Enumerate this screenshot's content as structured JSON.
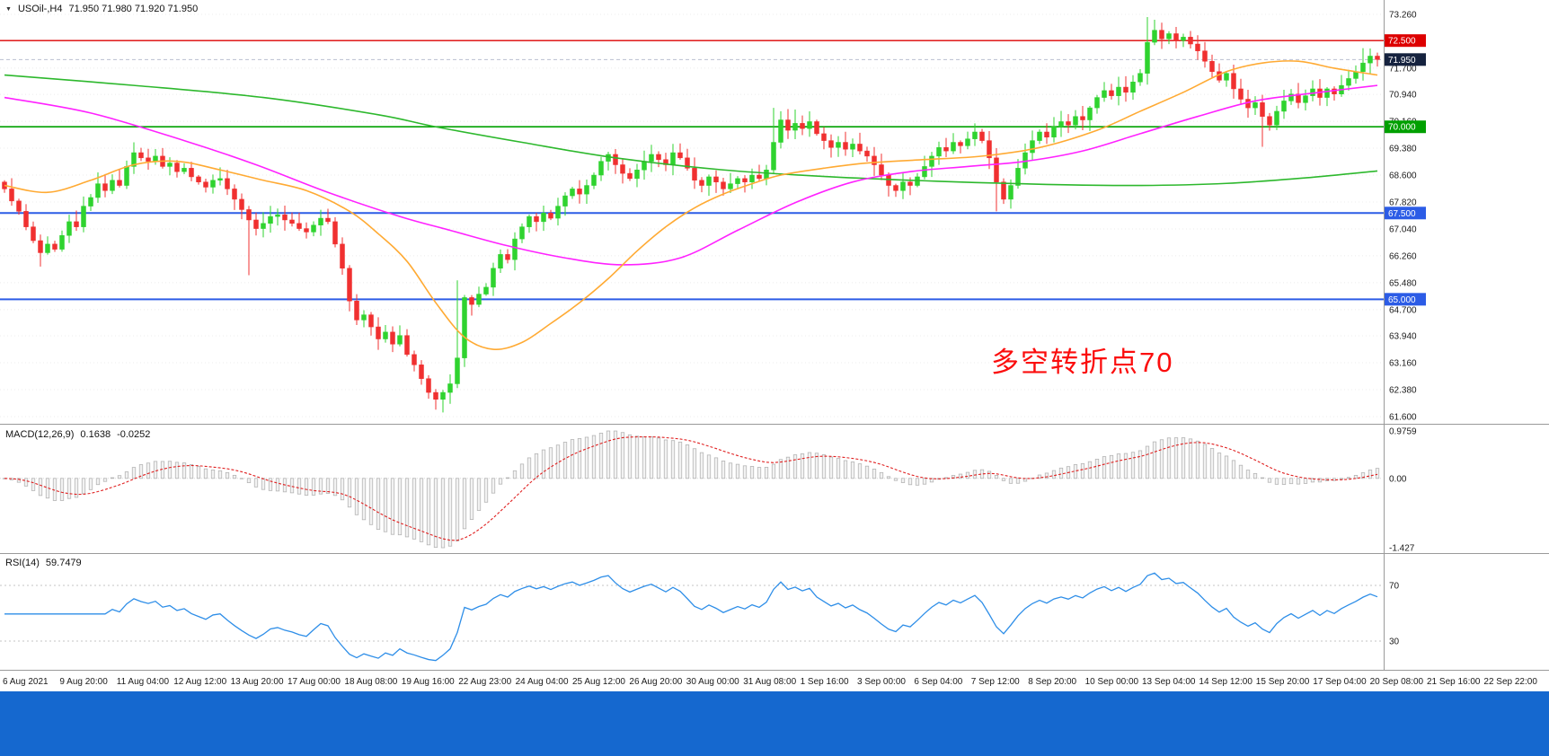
{
  "ui": {
    "footer_color": "#1568cf"
  },
  "chart_data": {
    "type": "candlestick",
    "title": {
      "symbol": "USOil-,H4",
      "values": "71.950 71.980 71.920 71.950"
    },
    "colors": {
      "up": "#2fd32f",
      "down": "#f03030",
      "grid": "#ececec",
      "separator": "#9a9a9a",
      "axis_text": "#1a1a1a"
    },
    "price_axis": {
      "labels": [
        "73.260",
        "71.700",
        "70.940",
        "70.160",
        "69.380",
        "68.600",
        "67.820",
        "67.040",
        "66.260",
        "65.480",
        "64.700",
        "63.940",
        "63.160",
        "62.380",
        "61.600"
      ],
      "badges": [
        {
          "text": "72.500",
          "price": 72.5,
          "color": "#dd0000"
        },
        {
          "text": "71.950",
          "price": 71.95,
          "color": "#16233f"
        },
        {
          "text": "70.000",
          "price": 70.0,
          "color": "#00a000"
        },
        {
          "text": "67.500",
          "price": 67.5,
          "color": "#2c5ce6"
        },
        {
          "text": "65.000",
          "price": 65.0,
          "color": "#2c5ce6"
        }
      ]
    },
    "levels": [
      {
        "price": 72.5,
        "color": "#dd0000",
        "width": 1.4
      },
      {
        "price": 70.0,
        "color": "#00a000",
        "width": 1.6
      },
      {
        "price": 67.5,
        "color": "#2c5ce6",
        "width": 2
      },
      {
        "price": 65.0,
        "color": "#2c5ce6",
        "width": 2
      }
    ],
    "current_price": 71.95,
    "candles": {
      "first_open": 68.4,
      "closes": [
        68.2,
        67.85,
        67.55,
        67.1,
        66.7,
        66.35,
        66.6,
        66.45,
        66.85,
        67.25,
        67.1,
        67.7,
        67.95,
        68.35,
        68.15,
        68.45,
        68.3,
        68.85,
        69.25,
        69.1,
        69.0,
        69.15,
        68.85,
        68.95,
        68.7,
        68.8,
        68.55,
        68.4,
        68.25,
        68.45,
        68.5,
        68.2,
        67.9,
        67.6,
        67.3,
        67.05,
        67.2,
        67.4,
        67.45,
        67.3,
        67.2,
        67.05,
        66.95,
        67.15,
        67.35,
        67.25,
        66.6,
        65.9,
        64.95,
        64.4,
        64.55,
        64.2,
        63.85,
        64.05,
        63.7,
        63.95,
        63.4,
        63.1,
        62.7,
        62.3,
        62.1,
        62.3,
        62.55,
        63.3,
        65.05,
        64.85,
        65.15,
        65.35,
        65.9,
        66.3,
        66.15,
        66.75,
        67.1,
        67.4,
        67.25,
        67.5,
        67.35,
        67.7,
        68.0,
        68.2,
        68.05,
        68.3,
        68.6,
        69.0,
        69.2,
        68.9,
        68.65,
        68.5,
        68.75,
        69.0,
        69.2,
        69.05,
        68.9,
        69.25,
        69.1,
        68.8,
        68.45,
        68.3,
        68.55,
        68.4,
        68.2,
        68.35,
        68.5,
        68.4,
        68.6,
        68.5,
        68.75,
        69.55,
        70.2,
        69.9,
        70.1,
        69.95,
        70.15,
        69.8,
        69.6,
        69.4,
        69.55,
        69.35,
        69.5,
        69.3,
        69.15,
        68.9,
        68.6,
        68.3,
        68.15,
        68.4,
        68.3,
        68.55,
        68.85,
        69.15,
        69.4,
        69.3,
        69.55,
        69.45,
        69.65,
        69.85,
        69.6,
        69.1,
        68.4,
        67.9,
        68.3,
        68.8,
        69.25,
        69.6,
        69.85,
        69.7,
        70.0,
        70.15,
        70.05,
        70.3,
        70.2,
        70.55,
        70.85,
        71.05,
        70.9,
        71.15,
        71.0,
        71.3,
        71.55,
        72.45,
        72.8,
        72.55,
        72.7,
        72.5,
        72.6,
        72.4,
        72.2,
        71.9,
        71.6,
        71.35,
        71.55,
        71.1,
        70.8,
        70.55,
        70.7,
        70.3,
        70.05,
        70.45,
        70.75,
        70.95,
        70.7,
        70.9,
        71.1,
        70.85,
        71.1,
        70.95,
        71.2,
        71.4,
        71.6,
        71.85,
        72.05,
        71.95
      ],
      "wick_overrides": {
        "5": {
          "low": 65.95
        },
        "18": {
          "high": 69.55
        },
        "34": {
          "low": 65.7
        },
        "49": {
          "high": 65.15
        },
        "60": {
          "low": 61.8
        },
        "61": {
          "low": 61.72
        },
        "63": {
          "high": 65.55
        },
        "107": {
          "high": 70.55
        },
        "110": {
          "high": 70.5
        },
        "112": {
          "high": 70.45
        },
        "135": {
          "high": 70.1
        },
        "138": {
          "low": 67.55
        },
        "159": {
          "high": 73.18
        },
        "161": {
          "high": 73.02
        },
        "175": {
          "low": 69.42
        },
        "189": {
          "high": 72.28
        }
      }
    },
    "moving_averages": [
      {
        "name": "ma-long-green",
        "color": "#2db82d",
        "points": [
          [
            0,
            71.5
          ],
          [
            18,
            71.2
          ],
          [
            36,
            70.85
          ],
          [
            52,
            70.35
          ],
          [
            60,
            70.0
          ],
          [
            72,
            69.55
          ],
          [
            85,
            69.1
          ],
          [
            100,
            68.75
          ],
          [
            115,
            68.55
          ],
          [
            130,
            68.42
          ],
          [
            145,
            68.33
          ],
          [
            158,
            68.3
          ],
          [
            170,
            68.36
          ],
          [
            181,
            68.52
          ],
          [
            191,
            68.72
          ]
        ]
      },
      {
        "name": "ma-magenta",
        "color": "#ff22ff",
        "points": [
          [
            0,
            70.85
          ],
          [
            12,
            70.4
          ],
          [
            25,
            69.6
          ],
          [
            35,
            68.9
          ],
          [
            45,
            68.1
          ],
          [
            55,
            67.4
          ],
          [
            62,
            67.0
          ],
          [
            70,
            66.55
          ],
          [
            78,
            66.2
          ],
          [
            86,
            66.0
          ],
          [
            94,
            66.2
          ],
          [
            102,
            67.0
          ],
          [
            110,
            67.8
          ],
          [
            118,
            68.4
          ],
          [
            126,
            68.7
          ],
          [
            134,
            68.85
          ],
          [
            142,
            69.0
          ],
          [
            150,
            69.3
          ],
          [
            158,
            69.8
          ],
          [
            166,
            70.3
          ],
          [
            174,
            70.75
          ],
          [
            183,
            71.0
          ],
          [
            191,
            71.2
          ]
        ]
      },
      {
        "name": "ma-orange",
        "color": "#ffaa33",
        "points": [
          [
            0,
            68.3
          ],
          [
            6,
            68.1
          ],
          [
            12,
            68.45
          ],
          [
            18,
            68.9
          ],
          [
            24,
            69.0
          ],
          [
            30,
            68.75
          ],
          [
            36,
            68.45
          ],
          [
            42,
            68.15
          ],
          [
            48,
            67.55
          ],
          [
            52,
            66.9
          ],
          [
            56,
            66.1
          ],
          [
            60,
            64.9
          ],
          [
            64,
            63.9
          ],
          [
            68,
            63.55
          ],
          [
            72,
            63.75
          ],
          [
            76,
            64.3
          ],
          [
            80,
            64.9
          ],
          [
            84,
            65.6
          ],
          [
            88,
            66.4
          ],
          [
            92,
            67.1
          ],
          [
            96,
            67.65
          ],
          [
            100,
            68.05
          ],
          [
            104,
            68.35
          ],
          [
            108,
            68.6
          ],
          [
            114,
            68.8
          ],
          [
            120,
            68.95
          ],
          [
            128,
            69.05
          ],
          [
            136,
            69.15
          ],
          [
            144,
            69.4
          ],
          [
            152,
            69.9
          ],
          [
            158,
            70.45
          ],
          [
            164,
            71.0
          ],
          [
            170,
            71.6
          ],
          [
            175,
            71.85
          ],
          [
            180,
            71.9
          ],
          [
            185,
            71.7
          ],
          [
            191,
            71.5
          ]
        ]
      }
    ],
    "macd": {
      "name": "MACD(12,26,9)",
      "value_main": "0.1638",
      "value_signal": "-0.0252",
      "params": [
        12,
        26,
        9
      ],
      "range": [
        -1.427,
        0.9759
      ],
      "axis_labels": [
        {
          "text": "0.9759",
          "v": 0.9759
        },
        {
          "text": "0.00",
          "v": 0
        },
        {
          "text": "-1.427",
          "v": -1.427
        }
      ],
      "signal_color": "#e02020",
      "bar_fill": "#f2f2f2",
      "bar_stroke": "#b4b4b4"
    },
    "rsi": {
      "name": "RSI(14)",
      "value": "59.7479",
      "period": 14,
      "levels": [
        70,
        30
      ],
      "line_color": "#2e8ee8"
    },
    "time_axis": [
      "6 Aug 2021",
      "9 Aug 20:00",
      "11 Aug 04:00",
      "12 Aug 12:00",
      "13 Aug 20:00",
      "17 Aug 00:00",
      "18 Aug 08:00",
      "19 Aug 16:00",
      "22 Aug 23:00",
      "24 Aug 04:00",
      "25 Aug 12:00",
      "26 Aug 20:00",
      "30 Aug 00:00",
      "31 Aug 08:00",
      "1 Sep 16:00",
      "3 Sep 00:00",
      "6 Sep 04:00",
      "7 Sep 12:00",
      "8 Sep 20:00",
      "10 Sep 00:00",
      "13 Sep 04:00",
      "14 Sep 12:00",
      "15 Sep 20:00",
      "17 Sep 04:00",
      "20 Sep 08:00",
      "21 Sep 16:00",
      "22 Sep 22:00"
    ],
    "annotation": {
      "text": "多空转折点70",
      "color": "#fb0d0d"
    }
  }
}
